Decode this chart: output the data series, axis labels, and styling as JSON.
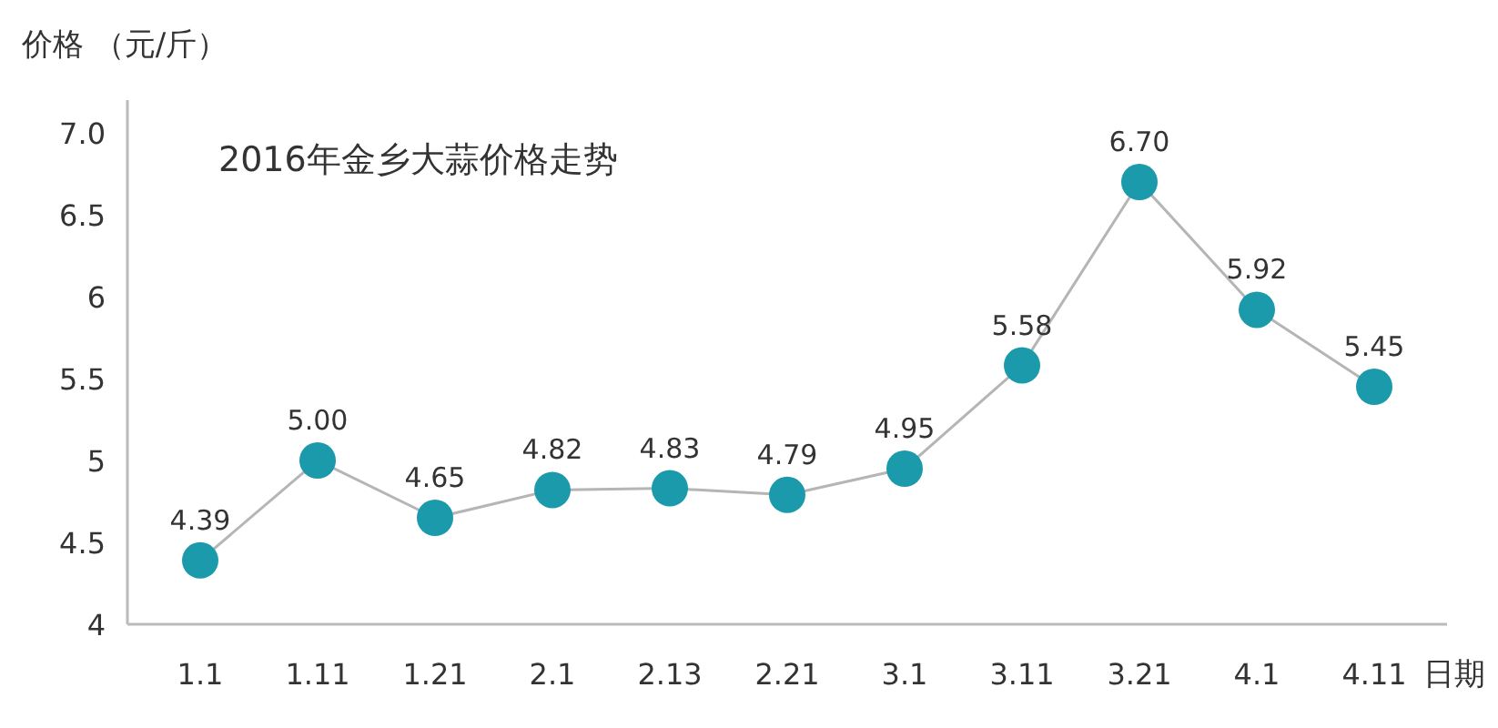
{
  "chart_data": {
    "type": "line",
    "title": "2016年金乡大蒜价格走势",
    "ylabel": "价格 （元/斤）",
    "xlabel": "日期",
    "categories": [
      "1.1",
      "1.11",
      "1.21",
      "2.1",
      "2.13",
      "2.21",
      "3.1",
      "3.11",
      "3.21",
      "4.1",
      "4.11"
    ],
    "series": [
      {
        "color": "#1a9aab",
        "values": [
          4.39,
          5.0,
          4.65,
          4.82,
          4.83,
          4.79,
          4.95,
          5.58,
          6.7,
          5.92,
          5.45
        ],
        "value_labels": [
          "4.39",
          "5.00",
          "4.65",
          "4.82",
          "4.83",
          "4.79",
          "4.95",
          "5.58",
          "6.70",
          "5.92",
          "5.45"
        ]
      }
    ],
    "ylim": [
      4,
      7.2
    ],
    "yticks": [
      4,
      4.5,
      5,
      5.5,
      6,
      6.5,
      {
        "value": 7,
        "label": "7.0"
      }
    ],
    "marker": "circle",
    "grid": false
  }
}
